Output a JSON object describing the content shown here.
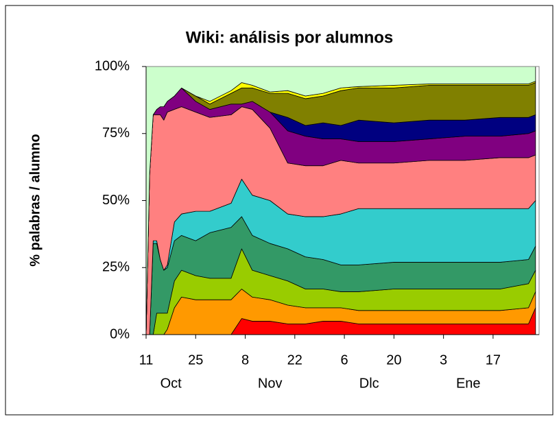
{
  "chart_data": {
    "type": "stacked_area",
    "title": "Wiki: análisis por alumnos",
    "y_label": "% palabras / alumno",
    "x": [
      0,
      1,
      2,
      3,
      4,
      5,
      6,
      8,
      10,
      14,
      18,
      24,
      27,
      30,
      35,
      40,
      45,
      50,
      55,
      60,
      70,
      80,
      90,
      100,
      108,
      110
    ],
    "xlim": [
      0,
      111
    ],
    "xticks": [
      {
        "value": 0,
        "label": "11"
      },
      {
        "value": 14,
        "label": "25"
      },
      {
        "value": 28,
        "label": "8"
      },
      {
        "value": 42,
        "label": "22"
      },
      {
        "value": 56,
        "label": "6"
      },
      {
        "value": 70,
        "label": "20"
      },
      {
        "value": 84,
        "label": "3"
      },
      {
        "value": 98,
        "label": "17"
      }
    ],
    "months": [
      "Oct",
      "Nov",
      "Dlc",
      "Ene"
    ],
    "ylim": [
      0,
      100
    ],
    "yticks": [
      {
        "value": 0,
        "label": "0%"
      },
      {
        "value": 25,
        "label": "25%"
      },
      {
        "value": 50,
        "label": "50%"
      },
      {
        "value": 75,
        "label": "75%"
      },
      {
        "value": 100,
        "label": "100%"
      }
    ],
    "series": [
      {
        "color": "#ff0000",
        "values": [
          0,
          0,
          0,
          0,
          0,
          0,
          0,
          0,
          0,
          0,
          0,
          0,
          6,
          5,
          5,
          4,
          4,
          5,
          5,
          4,
          4,
          4,
          4,
          4,
          4,
          10
        ]
      },
      {
        "color": "#ff9900",
        "values": [
          0,
          0,
          0,
          0,
          0,
          0,
          2,
          10,
          14,
          13,
          13,
          13,
          11,
          9,
          8,
          7,
          6,
          5,
          5,
          5,
          5,
          5,
          5,
          5,
          6,
          6
        ]
      },
      {
        "color": "#99cc00",
        "values": [
          0,
          0,
          0,
          8,
          8,
          8,
          6,
          10,
          10,
          9,
          8,
          8,
          15,
          10,
          9,
          9,
          7,
          7,
          6,
          7,
          8,
          8,
          8,
          8,
          9,
          8
        ]
      },
      {
        "color": "#339966",
        "values": [
          0,
          0,
          34,
          26,
          20,
          16,
          17,
          15,
          13,
          13,
          17,
          19,
          12,
          13,
          12,
          12,
          12,
          11,
          10,
          10,
          10,
          10,
          10,
          10,
          9,
          9
        ]
      },
      {
        "color": "#33cccc",
        "values": [
          0,
          0,
          1,
          1,
          0,
          0,
          1,
          7,
          8,
          11,
          8,
          9,
          14,
          15,
          16,
          13,
          15,
          16,
          19,
          21,
          20,
          20,
          20,
          20,
          19,
          17
        ]
      },
      {
        "color": "#ff8080",
        "values": [
          0,
          60,
          47,
          47,
          54,
          56,
          57,
          42,
          40,
          37,
          35,
          33,
          27,
          32,
          27,
          19,
          19,
          19,
          20,
          17,
          17,
          18,
          18,
          19,
          19,
          17
        ]
      },
      {
        "color": "#800080",
        "values": [
          0,
          0,
          0,
          2,
          3,
          5,
          4,
          5,
          7,
          4,
          3,
          4,
          1,
          3,
          6,
          12,
          11,
          10,
          8,
          8,
          8,
          8,
          9,
          8,
          9,
          9
        ]
      },
      {
        "color": "#000080",
        "values": [
          0,
          0,
          0,
          0,
          0,
          0,
          0,
          0,
          0,
          0,
          0,
          0,
          0,
          0,
          0,
          5,
          4,
          6,
          5,
          8,
          7,
          7,
          6,
          7,
          6,
          6
        ]
      },
      {
        "color": "#808000",
        "values": [
          0,
          0,
          0,
          0,
          0,
          0,
          0,
          0,
          0,
          2,
          2,
          4,
          6,
          5,
          7,
          9,
          10,
          10,
          13,
          12,
          13,
          13,
          13,
          12,
          12,
          12
        ]
      },
      {
        "color": "#ffff00",
        "values": [
          0,
          0,
          0,
          0,
          0,
          0,
          0,
          0,
          0,
          0,
          1,
          1,
          2,
          1,
          0.5,
          1,
          1,
          1,
          1,
          0.5,
          1,
          0.5,
          0.5,
          0.5,
          0.5,
          0.5
        ]
      },
      {
        "color": "#ccffcc",
        "values": [
          100,
          40,
          18,
          16,
          15,
          15,
          13,
          11,
          8,
          11,
          13,
          9,
          6,
          7,
          9.5,
          9,
          11,
          10,
          8,
          7.5,
          7,
          6.5,
          6.5,
          6.5,
          6.5,
          5.5
        ]
      }
    ]
  }
}
